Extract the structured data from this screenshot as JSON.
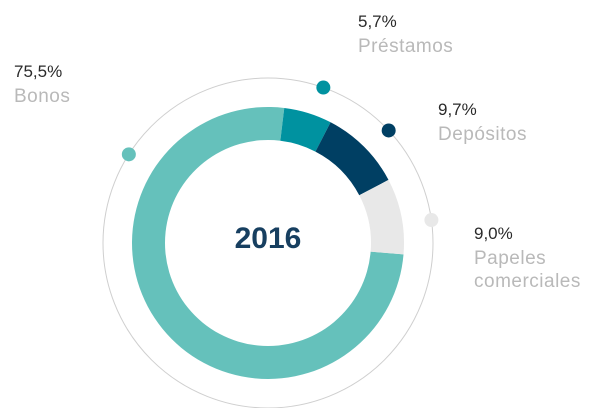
{
  "chart_data": {
    "type": "pie",
    "center_label": "2016",
    "categories": [
      "Bonos",
      "Préstamos",
      "Depósitos",
      "Papeles comerciales"
    ],
    "values": [
      75.5,
      5.7,
      9.7,
      9.0
    ],
    "value_labels": [
      "75,5%",
      "5,7%",
      "9,7%",
      "9,0%"
    ],
    "colors": [
      "#65c1bb",
      "#0092a0",
      "#003f63",
      "#e8e8e8"
    ]
  }
}
